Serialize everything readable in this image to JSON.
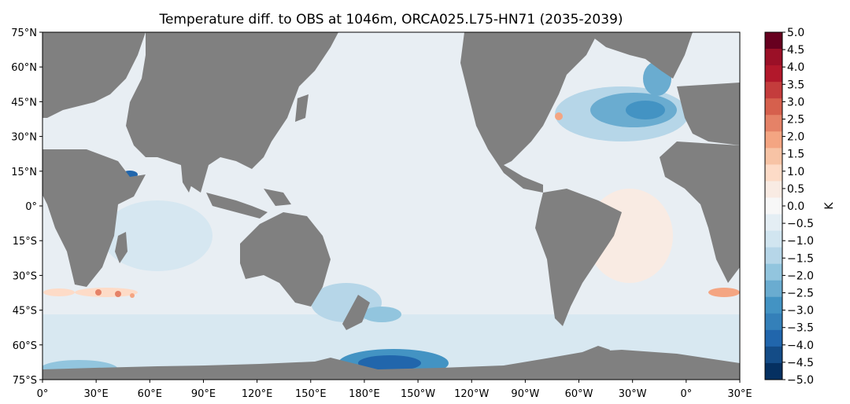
{
  "title": "Temperature diff. to OBS at 1046m, ORCA025.L75-HN71 (2035-2039)",
  "map": {
    "land_color": "#808080",
    "ocean_base_color": "#e8eef3",
    "lat_ticks": [
      "75°N",
      "60°N",
      "45°N",
      "30°N",
      "15°N",
      "0°",
      "15°S",
      "30°S",
      "45°S",
      "60°S",
      "75°S"
    ],
    "lon_ticks": [
      "0°",
      "30°E",
      "60°E",
      "90°E",
      "120°E",
      "150°E",
      "180°E",
      "150°W",
      "120°W",
      "90°W",
      "60°W",
      "30°W",
      "0°",
      "30°E"
    ],
    "lat_range": [
      -75,
      75
    ],
    "lon_range": [
      0,
      390
    ]
  },
  "colorbar": {
    "label": "K",
    "ticks": [
      "5.0",
      "4.5",
      "4.0",
      "3.5",
      "3.0",
      "2.5",
      "2.0",
      "1.5",
      "1.0",
      "0.5",
      "0.0",
      "−0.5",
      "−1.0",
      "−1.5",
      "−2.0",
      "−2.5",
      "−3.0",
      "−3.5",
      "−4.0",
      "−4.5",
      "−5.0"
    ],
    "colors": [
      "#67001f",
      "#9b1027",
      "#b2182b",
      "#c43c3c",
      "#d6604d",
      "#e58267",
      "#f4a582",
      "#f7c3a5",
      "#fddbc7",
      "#f9ebe3",
      "#f7f7f7",
      "#e4eef4",
      "#d1e5f0",
      "#b6d6e8",
      "#92c5de",
      "#6aacd0",
      "#4393c3",
      "#3480b9",
      "#2166ac",
      "#144c87",
      "#053061"
    ]
  }
}
